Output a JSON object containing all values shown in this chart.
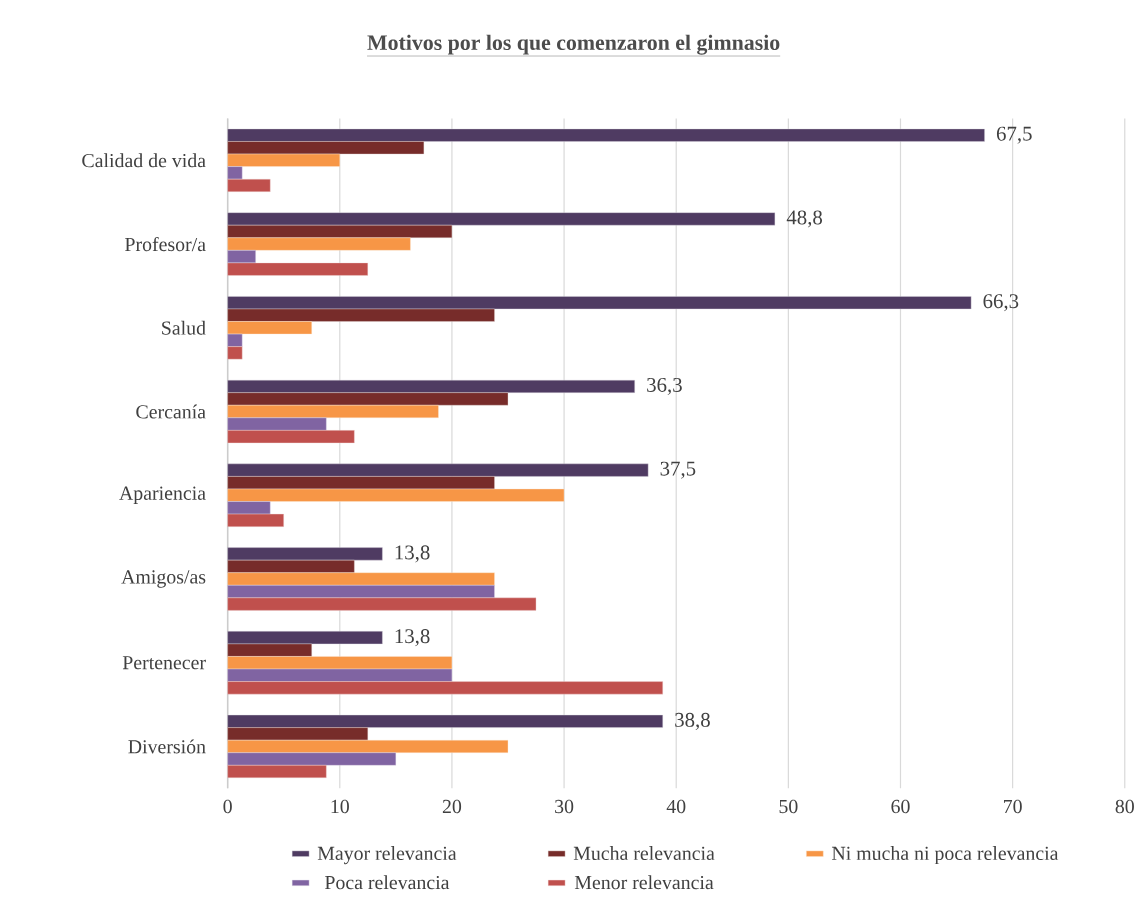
{
  "chart_data": {
    "type": "bar",
    "orientation": "horizontal",
    "title": "Motivos por los que comenzaron el gimnasio",
    "categories": [
      "Calidad de vida",
      "Profesor/a",
      "Salud",
      "Cercanía",
      "Apariencia",
      "Amigos/as",
      "Pertenecer",
      "Diversión"
    ],
    "series": [
      {
        "name": "Mayor relevancia",
        "color": "#4f3b62",
        "values": [
          67.5,
          48.8,
          66.3,
          36.3,
          37.5,
          13.8,
          13.8,
          38.8
        ],
        "value_labels": [
          "67,5",
          "48,8",
          "66,3",
          "36,3",
          "37,5",
          "13,8",
          "13,8",
          "38,8"
        ]
      },
      {
        "name": "Mucha relevancia",
        "color": "#772c2a",
        "values": [
          17.5,
          20,
          23.8,
          25,
          23.8,
          11.3,
          7.5,
          12.5
        ]
      },
      {
        "name": "Ni mucha ni poca relevancia",
        "color": "#f79646",
        "values": [
          10,
          16.3,
          7.5,
          18.8,
          30,
          23.8,
          20,
          25
        ]
      },
      {
        "name": "Poca relevancia",
        "color": "#8064a2",
        "values": [
          1.3,
          2.5,
          1.3,
          8.8,
          3.8,
          23.8,
          20,
          15
        ]
      },
      {
        "name": "Menor relevancia",
        "color": "#c0504d",
        "values": [
          3.8,
          12.5,
          1.3,
          11.3,
          5,
          27.5,
          38.8,
          8.8
        ]
      }
    ],
    "xlim": [
      0,
      80
    ],
    "xticks": [
      0,
      10,
      20,
      30,
      40,
      50,
      60,
      70,
      80
    ],
    "grid": "x",
    "legend": "bottom"
  }
}
